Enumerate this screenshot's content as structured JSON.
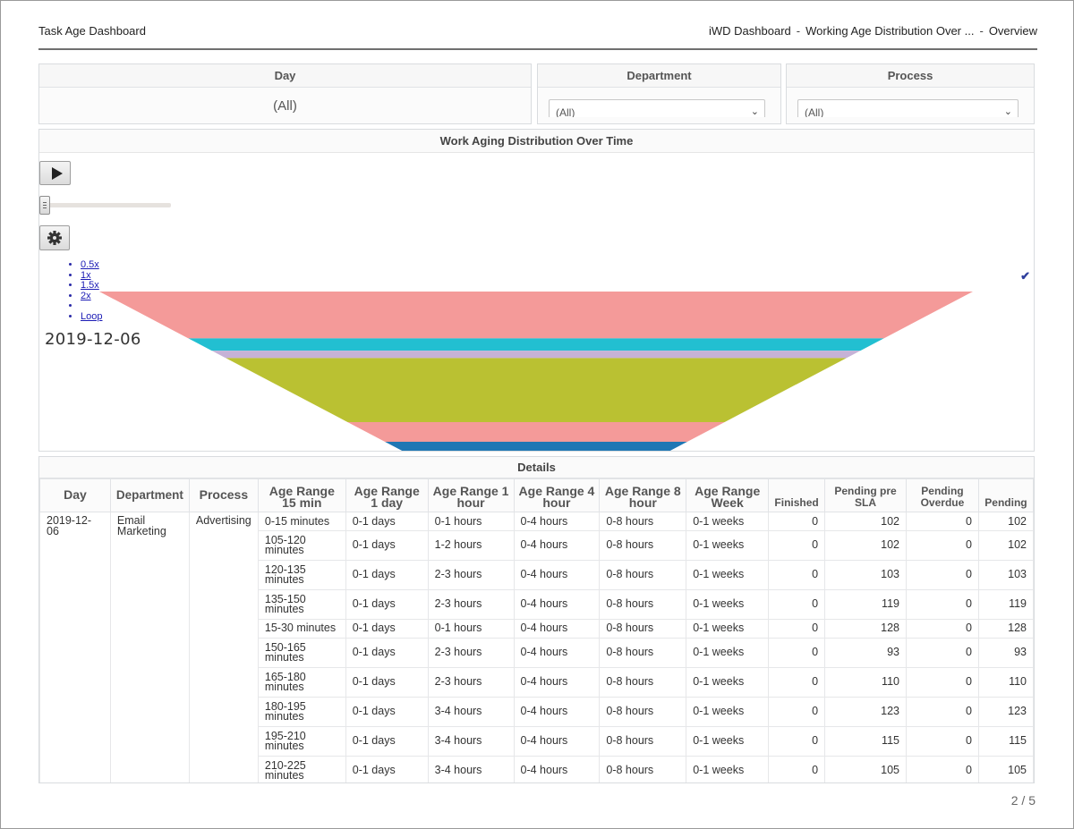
{
  "header": {
    "title": "Task Age Dashboard",
    "breadcrumb": [
      "iWD Dashboard",
      "Working Age Distribution Over ...",
      "Overview"
    ]
  },
  "filters": {
    "day": {
      "label": "Day",
      "value": "(All)"
    },
    "department": {
      "label": "Department",
      "value": "(All)"
    },
    "process": {
      "label": "Process",
      "value": "(All)"
    }
  },
  "chart_panel": {
    "title": "Work Aging Distribution Over Time",
    "date": "2019-12-06",
    "speed_options": [
      "0.5x",
      "1x",
      "1.5x",
      "2x",
      "",
      "Loop"
    ],
    "selected_mark": "✔"
  },
  "chart_data": {
    "type": "funnel",
    "title": "Work Aging Distribution Over Time",
    "date": "2019-12-06",
    "colors": [
      "#f49a99",
      "#22bfd1",
      "#c6b2d6",
      "#bac132",
      "#f49a99",
      "#1f77b4"
    ],
    "values": [
      {
        "segment": "1",
        "share": 0.19
      },
      {
        "segment": "2",
        "share": 0.05
      },
      {
        "segment": "3",
        "share": 0.03
      },
      {
        "segment": "4",
        "share": 0.26
      },
      {
        "segment": "5",
        "share": 0.08
      },
      {
        "segment": "6",
        "share": 0.04
      }
    ]
  },
  "details": {
    "title": "Details",
    "headers": [
      "Day",
      "Department",
      "Process",
      "Age Range 15 min",
      "Age Range 1 day",
      "Age Range 1 hour",
      "Age Range 4 hour",
      "Age Range 8 hour",
      "Age Range Week",
      "Finished",
      "Pending pre SLA",
      "Pending Overdue",
      "Pending"
    ],
    "group": {
      "day": "2019-12-06",
      "department": "Email Marketing",
      "process": "Advertising"
    },
    "rows": [
      [
        "0-15 minutes",
        "0-1 days",
        "0-1 hours",
        "0-4 hours",
        "0-8 hours",
        "0-1 weeks",
        "0",
        "102",
        "0",
        "102"
      ],
      [
        "105-120 minutes",
        "0-1 days",
        "1-2 hours",
        "0-4 hours",
        "0-8 hours",
        "0-1 weeks",
        "0",
        "102",
        "0",
        "102"
      ],
      [
        "120-135 minutes",
        "0-1 days",
        "2-3 hours",
        "0-4 hours",
        "0-8 hours",
        "0-1 weeks",
        "0",
        "103",
        "0",
        "103"
      ],
      [
        "135-150 minutes",
        "0-1 days",
        "2-3 hours",
        "0-4 hours",
        "0-8 hours",
        "0-1 weeks",
        "0",
        "119",
        "0",
        "119"
      ],
      [
        "15-30 minutes",
        "0-1 days",
        "0-1 hours",
        "0-4 hours",
        "0-8 hours",
        "0-1 weeks",
        "0",
        "128",
        "0",
        "128"
      ],
      [
        "150-165 minutes",
        "0-1 days",
        "2-3 hours",
        "0-4 hours",
        "0-8 hours",
        "0-1 weeks",
        "0",
        "93",
        "0",
        "93"
      ],
      [
        "165-180 minutes",
        "0-1 days",
        "2-3 hours",
        "0-4 hours",
        "0-8 hours",
        "0-1 weeks",
        "0",
        "110",
        "0",
        "110"
      ],
      [
        "180-195 minutes",
        "0-1 days",
        "3-4 hours",
        "0-4 hours",
        "0-8 hours",
        "0-1 weeks",
        "0",
        "123",
        "0",
        "123"
      ],
      [
        "195-210 minutes",
        "0-1 days",
        "3-4 hours",
        "0-4 hours",
        "0-8 hours",
        "0-1 weeks",
        "0",
        "115",
        "0",
        "115"
      ],
      [
        "210-225 minutes",
        "0-1 days",
        "3-4 hours",
        "0-4 hours",
        "0-8 hours",
        "0-1 weeks",
        "0",
        "105",
        "0",
        "105"
      ]
    ]
  },
  "footer": {
    "page": "2 / 5"
  }
}
